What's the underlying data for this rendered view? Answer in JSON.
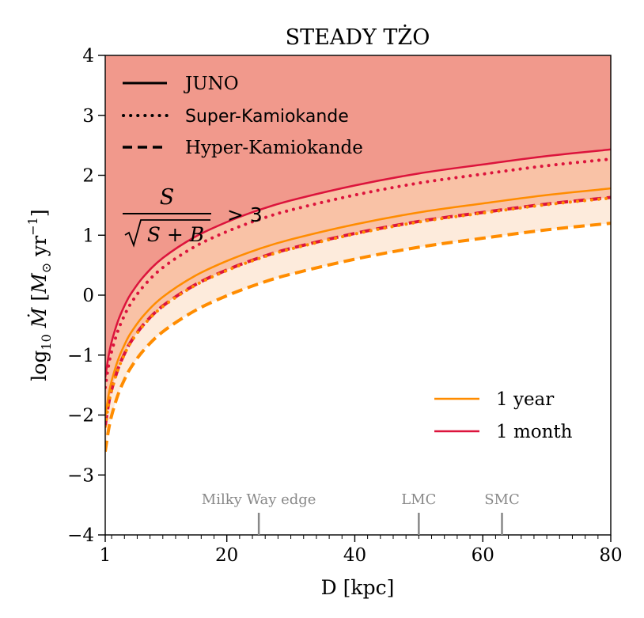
{
  "chart_data": {
    "type": "line",
    "title": "STEADY TŻO",
    "xlabel": "D [kpc]",
    "ylabel_parts": {
      "pre": "log",
      "sub": "10",
      "mdot": "Ṁ",
      "open": "[",
      "m": "M",
      "sun": "⊙",
      "yr": "yr",
      "sup": "−1",
      "close": "]"
    },
    "xlim": [
      1,
      80
    ],
    "ylim": [
      -4,
      4
    ],
    "xticks": [
      1,
      20,
      40,
      60,
      80
    ],
    "xtick_labels": [
      "1",
      "20",
      "40",
      "60",
      "80"
    ],
    "yticks": [
      -4,
      -3,
      -2,
      -1,
      0,
      1,
      2,
      3,
      4
    ],
    "ytick_labels": [
      "−4",
      "−3",
      "−2",
      "−1",
      "0",
      "1",
      "2",
      "3",
      "4"
    ],
    "colors": {
      "region_above": "#f1998c",
      "band_month": "#f9c2a6",
      "band_year": "#fdebdc",
      "year": "#ff8c00",
      "month": "#dc143c",
      "markers": "#888888"
    },
    "x": [
      1,
      1.5,
      2,
      3,
      4,
      5,
      7,
      10,
      15,
      20,
      25,
      30,
      40,
      50,
      60,
      70,
      80
    ],
    "series": [
      {
        "name": "JUNO 1 month",
        "detector": "JUNO",
        "exposure": "1 month",
        "style": "solid",
        "values": [
          -1.38,
          -1.03,
          -0.78,
          -0.43,
          -0.18,
          0.02,
          0.31,
          0.62,
          0.97,
          1.22,
          1.42,
          1.58,
          1.83,
          2.03,
          2.18,
          2.32,
          2.43
        ]
      },
      {
        "name": "Super-Kamiokande 1 month",
        "detector": "Super-Kamiokande",
        "exposure": "1 month",
        "style": "dotted",
        "values": [
          -1.54,
          -1.19,
          -0.94,
          -0.59,
          -0.34,
          -0.14,
          0.15,
          0.46,
          0.81,
          1.06,
          1.26,
          1.42,
          1.67,
          1.87,
          2.02,
          2.16,
          2.27
        ]
      },
      {
        "name": "Hyper-Kamiokande 1 month",
        "detector": "Hyper-Kamiokande",
        "exposure": "1 month",
        "style": "dashed",
        "values": [
          -2.18,
          -1.83,
          -1.58,
          -1.23,
          -0.98,
          -0.78,
          -0.49,
          -0.18,
          0.17,
          0.42,
          0.62,
          0.78,
          1.03,
          1.23,
          1.38,
          1.52,
          1.63
        ]
      },
      {
        "name": "JUNO 1 year",
        "detector": "JUNO",
        "exposure": "1 year",
        "style": "solid",
        "values": [
          -2.03,
          -1.68,
          -1.43,
          -1.08,
          -0.83,
          -0.63,
          -0.34,
          -0.03,
          0.32,
          0.57,
          0.77,
          0.93,
          1.18,
          1.38,
          1.53,
          1.67,
          1.78
        ]
      },
      {
        "name": "Super-Kamiokande 1 year",
        "detector": "Super-Kamiokande",
        "exposure": "1 year",
        "style": "dotted",
        "values": [
          -2.19,
          -1.84,
          -1.59,
          -1.24,
          -0.99,
          -0.79,
          -0.5,
          -0.19,
          0.16,
          0.41,
          0.61,
          0.77,
          1.02,
          1.22,
          1.37,
          1.51,
          1.62
        ]
      },
      {
        "name": "Hyper-Kamiokande 1 year",
        "detector": "Hyper-Kamiokande",
        "exposure": "1 year",
        "style": "dashed",
        "values": [
          -2.61,
          -2.26,
          -2.01,
          -1.66,
          -1.41,
          -1.21,
          -0.92,
          -0.61,
          -0.26,
          -0.01,
          0.19,
          0.35,
          0.6,
          0.8,
          0.95,
          1.09,
          1.2
        ]
      }
    ],
    "legend_styles": {
      "position": "top-left",
      "entries": [
        {
          "label": "JUNO",
          "style": "solid"
        },
        {
          "label": "Super-Kamiokande",
          "style": "dotted"
        },
        {
          "label": "Hyper-Kamiokande",
          "style": "dashed"
        }
      ]
    },
    "legend_exposure": {
      "position": "lower-right",
      "entries": [
        {
          "label": "1 year",
          "color": "#ff8c00"
        },
        {
          "label": "1 month",
          "color": "#dc143c"
        }
      ]
    },
    "annotation": {
      "numerator": "S",
      "radicand": "S + B",
      "relation": "> 3"
    },
    "markers": [
      {
        "label": "Milky Way edge",
        "x": 25
      },
      {
        "label": "LMC",
        "x": 50
      },
      {
        "label": "SMC",
        "x": 63
      }
    ]
  }
}
